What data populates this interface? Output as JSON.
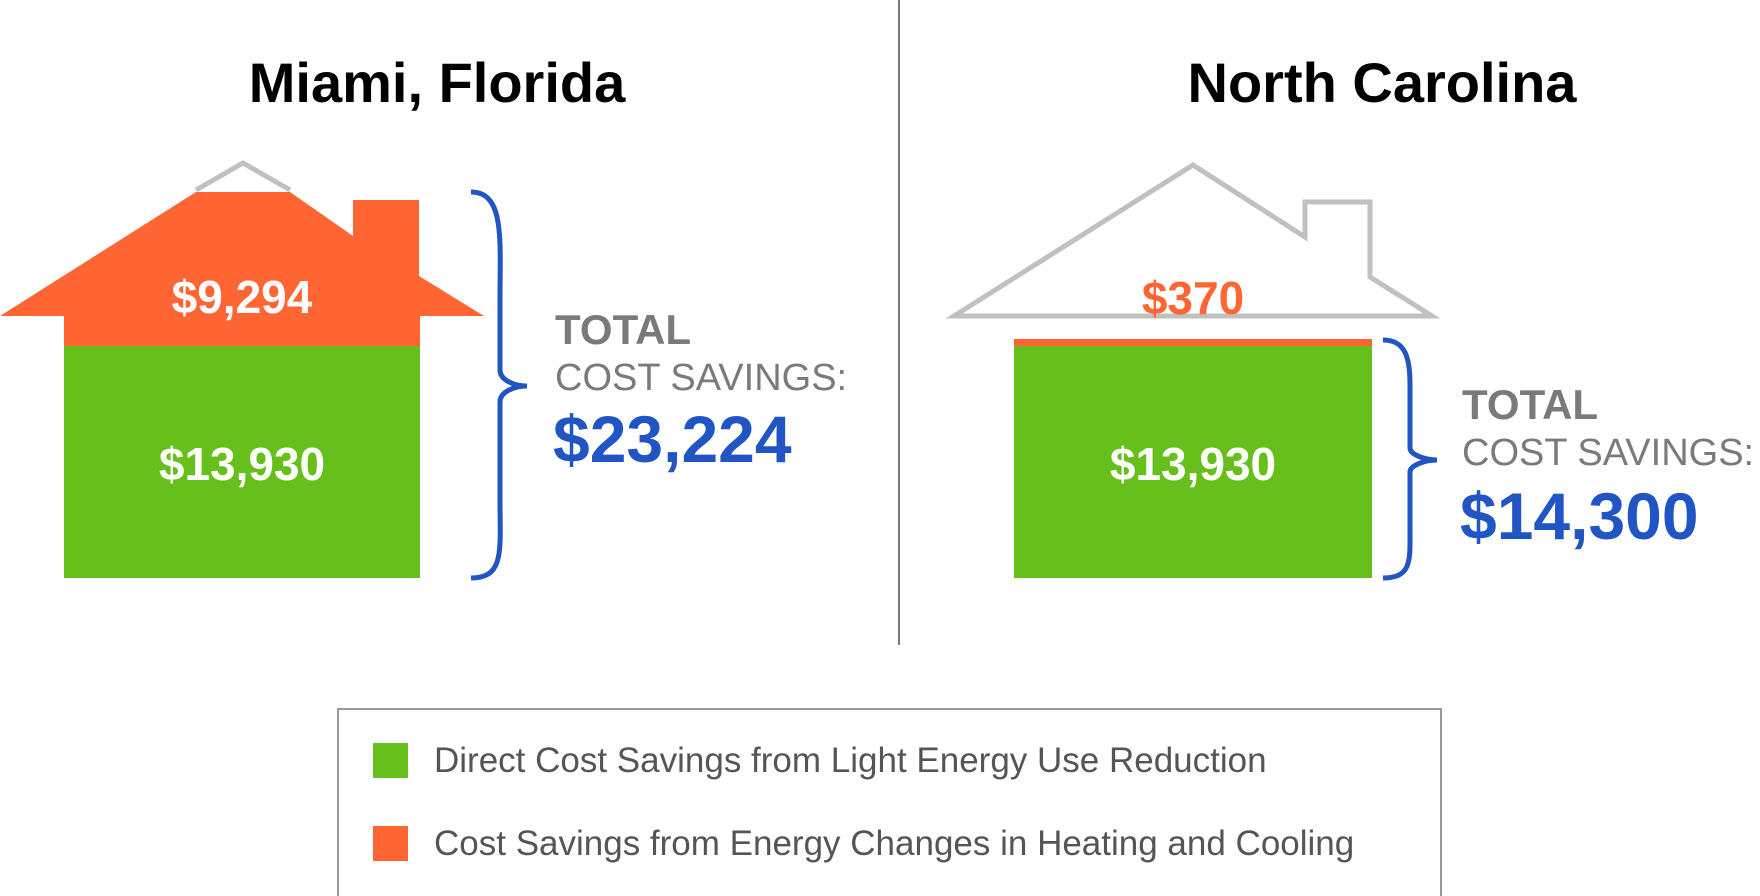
{
  "colors": {
    "green": "#66bf1a",
    "orange": "#ff6633",
    "blue": "#2155c4",
    "outline": "#c0c0c0",
    "divider": "#777777",
    "gray_text": "#7a7a7a"
  },
  "chart_data": [
    {
      "type": "bar",
      "stacked": true,
      "title": "Miami, Florida",
      "series": [
        {
          "name": "Direct Cost Savings from Light Energy Use Reduction",
          "value": 13930,
          "label": "$13,930",
          "color": "#66bf1a"
        },
        {
          "name": "Cost Savings from Energy Changes in Heating and Cooling",
          "value": 9294,
          "label": "$9,294",
          "color": "#ff6633"
        }
      ],
      "total_label": "TOTAL",
      "total_sublabel": "COST SAVINGS:",
      "total": 23224,
      "total_text": "$23,224"
    },
    {
      "type": "bar",
      "stacked": true,
      "title": "North Carolina",
      "series": [
        {
          "name": "Direct Cost Savings from Light Energy Use Reduction",
          "value": 13930,
          "label": "$13,930",
          "color": "#66bf1a"
        },
        {
          "name": "Cost Savings from Energy Changes in Heating and Cooling",
          "value": 370,
          "label": "$370",
          "color": "#ff6633"
        }
      ],
      "total_label": "TOTAL",
      "total_sublabel": "COST SAVINGS:",
      "total": 14300,
      "total_text": "$14,300"
    }
  ],
  "legend": [
    {
      "label": "Direct Cost Savings from Light Energy Use Reduction",
      "color": "#66bf1a"
    },
    {
      "label": "Cost Savings from Energy Changes in Heating and Cooling",
      "color": "#ff6633"
    }
  ]
}
